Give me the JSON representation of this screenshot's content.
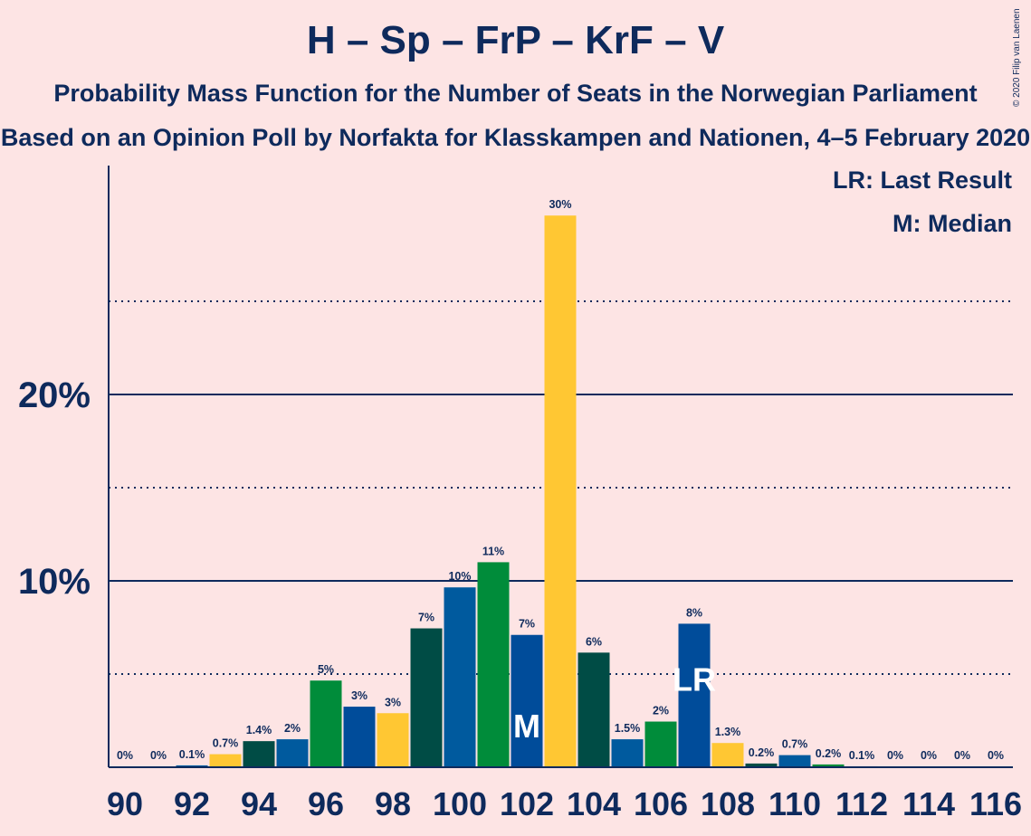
{
  "chart_data": {
    "type": "bar",
    "title": "H – Sp – FrP – KrF – V",
    "subtitle": "Probability Mass Function for the Number of Seats in the Norwegian Parliament",
    "subtitle2": "Based on an Opinion Poll by Norfakta for Klasskampen and Nationen, 4–5 February 2020",
    "legend": [
      "LR: Last Result",
      "M: Median"
    ],
    "copyright": "© 2020 Filip van Laenen",
    "xlabel": "",
    "ylabel": "",
    "ylim": [
      0,
      32
    ],
    "y_ticks": [
      {
        "value": 10,
        "label": "10%"
      },
      {
        "value": 20,
        "label": "20%"
      }
    ],
    "dotted_gridlines": [
      5,
      15,
      25
    ],
    "x_ticks": [
      90,
      92,
      94,
      96,
      98,
      100,
      102,
      104,
      106,
      108,
      110,
      112,
      114,
      116
    ],
    "colors": {
      "H": "#005A9E",
      "Sp": "#008C3A",
      "FrP": "#004C9A",
      "KrF": "#FFC733",
      "V": "#004C45",
      "axis": "#0E2A5C",
      "background": "#FDE4E4"
    },
    "markers": {
      "median": 102,
      "median_label": "M",
      "last_result": 107,
      "last_result_label": "LR"
    },
    "bars": [
      {
        "x": 90,
        "value": 0,
        "label": "0%",
        "color": "#FFC733"
      },
      {
        "x": 91,
        "value": 0,
        "label": "0%",
        "color": "#004C45"
      },
      {
        "x": 92,
        "value": 0.1,
        "label": "0.1%",
        "color": "#005A9E"
      },
      {
        "x": 93,
        "value": 0.7,
        "label": "0.7%",
        "color": "#FFC733"
      },
      {
        "x": 94,
        "value": 1.4,
        "label": "1.4%",
        "color": "#004C45"
      },
      {
        "x": 95,
        "value": 1.5,
        "label": "2%",
        "color": "#005A9E"
      },
      {
        "x": 96,
        "value": 4.65,
        "label": "5%",
        "color": "#008C3A"
      },
      {
        "x": 97,
        "value": 3.25,
        "label": "3%",
        "color": "#004C9A"
      },
      {
        "x": 98,
        "value": 2.9,
        "label": "3%",
        "color": "#FFC733"
      },
      {
        "x": 99,
        "value": 7.45,
        "label": "7%",
        "color": "#004C45"
      },
      {
        "x": 100,
        "value": 9.65,
        "label": "10%",
        "color": "#005A9E"
      },
      {
        "x": 101,
        "value": 11.0,
        "label": "11%",
        "color": "#008C3A"
      },
      {
        "x": 102,
        "value": 7.1,
        "label": "7%",
        "color": "#004C9A"
      },
      {
        "x": 103,
        "value": 29.6,
        "label": "30%",
        "color": "#FFC733"
      },
      {
        "x": 104,
        "value": 6.15,
        "label": "6%",
        "color": "#004C45"
      },
      {
        "x": 105,
        "value": 1.5,
        "label": "1.5%",
        "color": "#005A9E"
      },
      {
        "x": 106,
        "value": 2.45,
        "label": "2%",
        "color": "#008C3A"
      },
      {
        "x": 107,
        "value": 7.7,
        "label": "8%",
        "color": "#004C9A"
      },
      {
        "x": 108,
        "value": 1.3,
        "label": "1.3%",
        "color": "#FFC733"
      },
      {
        "x": 109,
        "value": 0.2,
        "label": "0.2%",
        "color": "#004C45"
      },
      {
        "x": 110,
        "value": 0.65,
        "label": "0.7%",
        "color": "#005A9E"
      },
      {
        "x": 111,
        "value": 0.15,
        "label": "0.2%",
        "color": "#008C3A"
      },
      {
        "x": 112,
        "value": 0.05,
        "label": "0.1%",
        "color": "#004C9A"
      },
      {
        "x": 113,
        "value": 0,
        "label": "0%",
        "color": "#FFC733"
      },
      {
        "x": 114,
        "value": 0,
        "label": "0%",
        "color": "#004C45"
      },
      {
        "x": 115,
        "value": 0,
        "label": "0%",
        "color": "#005A9E"
      },
      {
        "x": 116,
        "value": 0,
        "label": "0%",
        "color": "#008C3A"
      }
    ]
  }
}
